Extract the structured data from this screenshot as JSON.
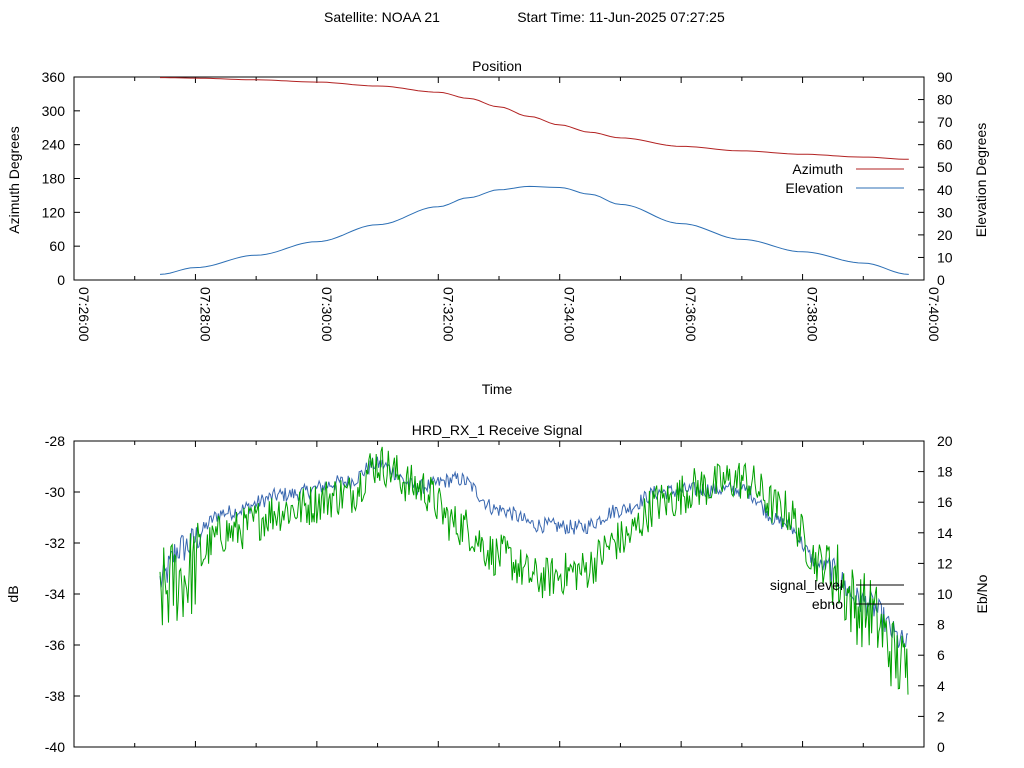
{
  "header": {
    "satellite": "Satellite: NOAA 21",
    "start_time": "Start Time: 11-Jun-2025 07:27:25"
  },
  "colors": {
    "azimuth": "#b22222",
    "elevation": "#2c6fb5",
    "signal_level": "#3a68b0",
    "ebno": "#00a000",
    "axis": "#000000"
  },
  "chart_data": [
    {
      "type": "line",
      "title": "Position",
      "xlabel": "Time",
      "ylabel": "Azimuth Degrees",
      "y2label": "Elevation Degrees",
      "xticks": [
        "07:26:00",
        "07:28:00",
        "07:30:00",
        "07:32:00",
        "07:34:00",
        "07:36:00",
        "07:38:00",
        "07:40:00"
      ],
      "xlim": [
        "07:26:00",
        "07:40:00"
      ],
      "ylim": [
        0,
        360
      ],
      "yticks": [
        0,
        60,
        120,
        180,
        240,
        300,
        360
      ],
      "y2lim": [
        0,
        90
      ],
      "y2ticks": [
        0,
        10,
        20,
        30,
        40,
        50,
        60,
        70,
        80,
        90
      ],
      "legend": "right",
      "grid": false,
      "series": [
        {
          "name": "Azimuth",
          "axis": "y",
          "x": [
            "07:27:25",
            "07:28:00",
            "07:29:00",
            "07:30:00",
            "07:31:00",
            "07:32:00",
            "07:32:30",
            "07:33:00",
            "07:33:30",
            "07:34:00",
            "07:34:30",
            "07:35:00",
            "07:36:00",
            "07:37:00",
            "07:38:00",
            "07:39:00",
            "07:39:45"
          ],
          "y": [
            359,
            358,
            355,
            351,
            344,
            333,
            322,
            307,
            290,
            275,
            262,
            252,
            237,
            229,
            223,
            218,
            214
          ]
        },
        {
          "name": "Elevation",
          "axis": "y2",
          "x": [
            "07:27:25",
            "07:28:00",
            "07:29:00",
            "07:30:00",
            "07:31:00",
            "07:32:00",
            "07:32:30",
            "07:33:00",
            "07:33:30",
            "07:34:00",
            "07:34:30",
            "07:35:00",
            "07:36:00",
            "07:37:00",
            "07:38:00",
            "07:39:00",
            "07:39:45"
          ],
          "y": [
            2.5,
            5.5,
            11,
            17,
            24.5,
            32.5,
            36.5,
            40,
            41.5,
            41,
            38,
            33.5,
            25,
            18,
            12.5,
            7.5,
            2.5
          ]
        }
      ]
    },
    {
      "type": "line",
      "title": "HRD_RX_1 Receive Signal",
      "ylabel": "dB",
      "y2label": "Eb/No",
      "xlim": [
        "07:26:00",
        "07:40:00"
      ],
      "ylim": [
        -40,
        -28
      ],
      "yticks": [
        -40,
        -38,
        -36,
        -34,
        -32,
        -30,
        -28
      ],
      "y2lim": [
        0,
        20
      ],
      "y2ticks": [
        0,
        2,
        4,
        6,
        8,
        10,
        12,
        14,
        16,
        18,
        20
      ],
      "legend": "right",
      "grid": false,
      "series": [
        {
          "name": "signal_level",
          "axis": "y",
          "x": [
            "07:27:25",
            "07:27:45",
            "07:28:30",
            "07:29:30",
            "07:30:30",
            "07:31:00",
            "07:31:40",
            "07:32:20",
            "07:33:00",
            "07:33:40",
            "07:34:20",
            "07:35:00",
            "07:35:40",
            "07:36:20",
            "07:37:00",
            "07:37:40",
            "07:38:20",
            "07:39:00",
            "07:39:45"
          ],
          "y": [
            -33.5,
            -32.2,
            -30.8,
            -30.1,
            -29.6,
            -28.9,
            -29.8,
            -29.5,
            -30.7,
            -31.3,
            -31.4,
            -30.7,
            -30.0,
            -29.9,
            -29.9,
            -31.2,
            -32.9,
            -34.3,
            -36.0
          ]
        },
        {
          "name": "ebno",
          "axis": "y2",
          "x": [
            "07:27:25",
            "07:27:45",
            "07:28:30",
            "07:29:30",
            "07:30:30",
            "07:31:00",
            "07:31:40",
            "07:32:20",
            "07:33:00",
            "07:33:40",
            "07:34:20",
            "07:35:00",
            "07:35:40",
            "07:36:20",
            "07:37:00",
            "07:37:40",
            "07:38:20",
            "07:39:00",
            "07:39:45"
          ],
          "y": [
            10,
            11,
            14,
            15.5,
            16.5,
            18.5,
            17,
            14.5,
            12.5,
            11,
            11.5,
            13.5,
            16,
            17,
            17.5,
            15.5,
            12,
            9,
            5
          ]
        }
      ]
    }
  ]
}
